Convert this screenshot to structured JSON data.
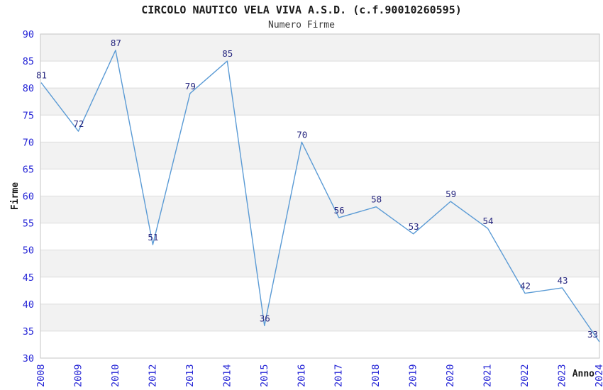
{
  "chart_data": {
    "type": "line",
    "title": "CIRCOLO NAUTICO VELA VIVA A.S.D. (c.f.90010260595)",
    "subtitle": "Numero Firme",
    "xlabel": "Anno",
    "ylabel": "Firme",
    "categories": [
      "2008",
      "2009",
      "2010",
      "2012",
      "2013",
      "2014",
      "2015",
      "2016",
      "2017",
      "2018",
      "2019",
      "2020",
      "2021",
      "2022",
      "2023",
      "2024"
    ],
    "values": [
      81,
      72,
      87,
      51,
      79,
      85,
      36,
      70,
      56,
      58,
      53,
      59,
      54,
      42,
      43,
      33
    ],
    "ylim": [
      30,
      90
    ],
    "ytick_step": 5,
    "grid": true,
    "legend": "none",
    "band_fill_note": "alternating horizontal stripes every 5 units",
    "colors": {
      "line": "#5b9bd5",
      "point_label": "#26267f",
      "tick_label": "#2424d6",
      "title": "#1a1a1a",
      "subtitle": "#3a3a3a",
      "axis_label": "#1a1a1a",
      "band": "#f2f2f2",
      "gridline": "#dcdcdc",
      "border": "#c4c4c4",
      "background": "#ffffff"
    }
  }
}
